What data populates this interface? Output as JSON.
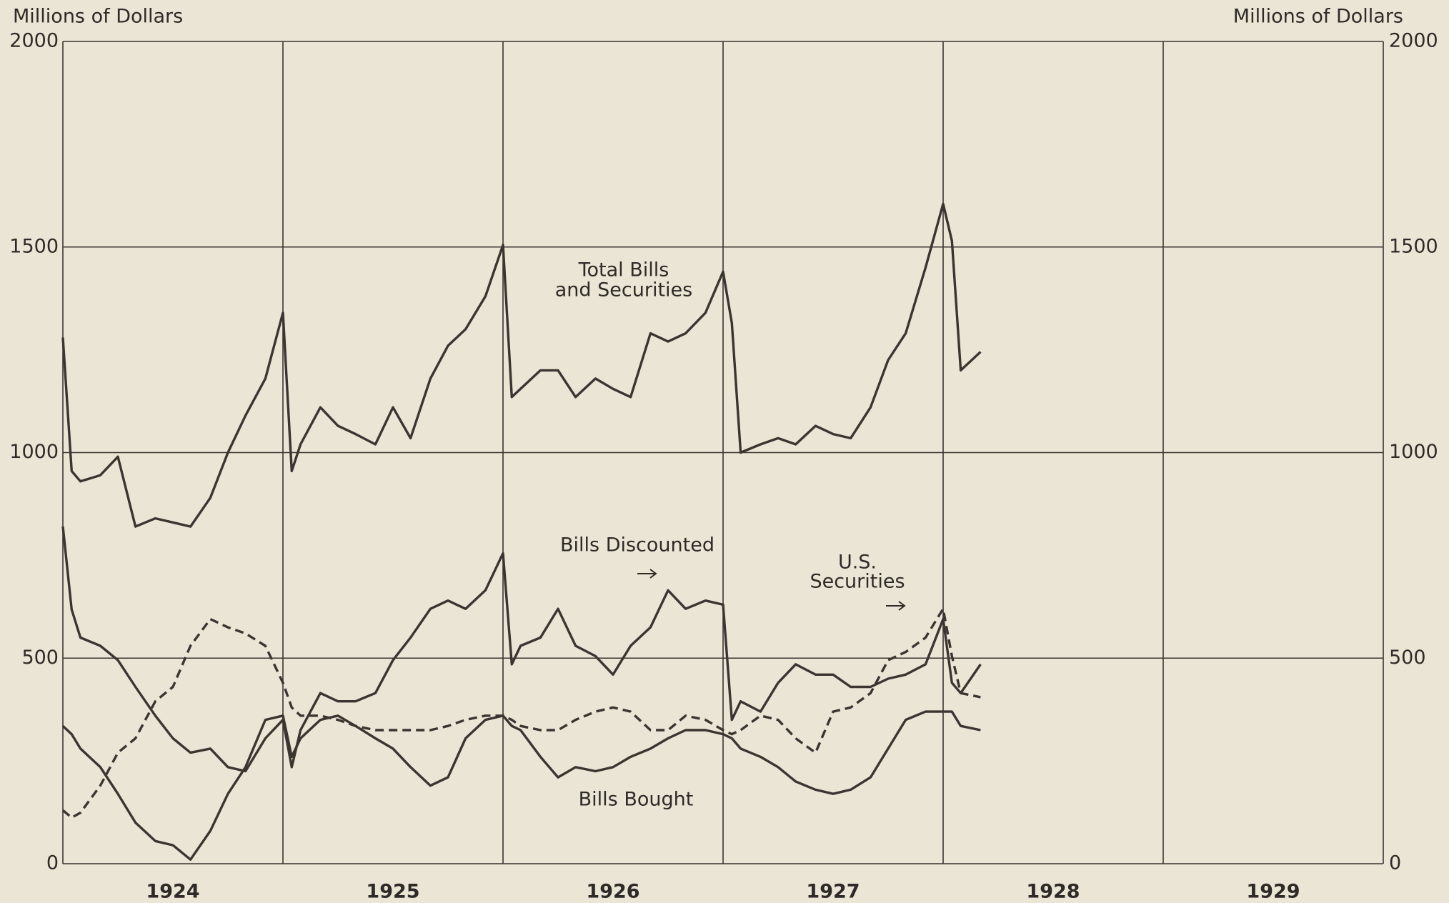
{
  "chart_data": {
    "type": "line",
    "y_axis_label": "Millions of Dollars",
    "y2_axis_label": "Millions of Dollars",
    "annotations": [
      "Total Bills",
      "and Securities",
      "Bills Discounted",
      "U.S.",
      "Securities",
      "Bills Bought"
    ],
    "xlim": [
      1924,
      1930
    ],
    "xticks": [
      {
        "value": 1924.5,
        "label": "1924"
      },
      {
        "value": 1925.5,
        "label": "1925"
      },
      {
        "value": 1926.5,
        "label": "1926"
      },
      {
        "value": 1927.5,
        "label": "1927"
      },
      {
        "value": 1928.5,
        "label": "1928"
      },
      {
        "value": 1929.5,
        "label": "1929"
      }
    ],
    "ylim": [
      0,
      2000
    ],
    "yticks": [
      0,
      500,
      1000,
      1500,
      2000
    ],
    "grid": true,
    "x": [
      1924.0,
      1924.04,
      1924.08,
      1924.17,
      1924.25,
      1924.33,
      1924.42,
      1924.5,
      1924.58,
      1924.67,
      1924.75,
      1924.83,
      1924.92,
      1925.0,
      1925.04,
      1925.08,
      1925.17,
      1925.25,
      1925.33,
      1925.42,
      1925.5,
      1925.58,
      1925.67,
      1925.75,
      1925.83,
      1925.92,
      1926.0,
      1926.04,
      1926.08,
      1926.17,
      1926.25,
      1926.33,
      1926.42,
      1926.5,
      1926.58,
      1926.67,
      1926.75,
      1926.83,
      1926.92,
      1927.0,
      1927.04,
      1927.08,
      1927.17,
      1927.25,
      1927.33,
      1927.42,
      1927.5,
      1927.58,
      1927.67,
      1927.75,
      1927.83,
      1927.92,
      1928.0,
      1928.04,
      1928.08,
      1928.17
    ],
    "series": [
      {
        "name": "Total Bills and Securities",
        "color": "#3a3531",
        "dashed": false,
        "values": [
          1280,
          955,
          930,
          945,
          990,
          820,
          840,
          830,
          820,
          890,
          1000,
          1090,
          1180,
          1340,
          955,
          1020,
          1110,
          1065,
          1045,
          1020,
          1110,
          1035,
          1180,
          1260,
          1300,
          1380,
          1505,
          1135,
          1155,
          1200,
          1200,
          1135,
          1180,
          1155,
          1135,
          1290,
          1270,
          1290,
          1340,
          1440,
          1315,
          1000,
          1020,
          1035,
          1020,
          1065,
          1045,
          1035,
          1110,
          1225,
          1290,
          1450,
          1605,
          1515,
          1200,
          1245
        ]
      },
      {
        "name": "Bills Discounted",
        "color": "#3a3531",
        "dashed": false,
        "values": [
          820,
          618,
          550,
          530,
          495,
          430,
          360,
          305,
          270,
          280,
          235,
          225,
          305,
          350,
          235,
          325,
          415,
          395,
          395,
          415,
          495,
          550,
          620,
          640,
          620,
          665,
          755,
          485,
          530,
          550,
          620,
          530,
          505,
          460,
          530,
          575,
          665,
          620,
          640,
          630,
          350,
          395,
          370,
          440,
          485,
          460,
          460,
          430,
          430,
          450,
          460,
          485,
          595,
          440,
          415,
          485
        ]
      },
      {
        "name": "U.S. Securities",
        "color": "#3a3531",
        "dashed": true,
        "values": [
          130,
          112,
          124,
          190,
          270,
          305,
          395,
          430,
          530,
          595,
          575,
          560,
          530,
          440,
          380,
          360,
          360,
          350,
          335,
          325,
          325,
          325,
          325,
          335,
          350,
          360,
          360,
          350,
          335,
          325,
          325,
          350,
          370,
          380,
          370,
          325,
          325,
          360,
          350,
          325,
          315,
          325,
          360,
          350,
          305,
          270,
          370,
          380,
          415,
          495,
          515,
          550,
          620,
          505,
          415,
          405
        ]
      },
      {
        "name": "Bills Bought",
        "color": "#3a3531",
        "dashed": false,
        "values": [
          335,
          315,
          280,
          235,
          170,
          100,
          55,
          45,
          10,
          80,
          170,
          235,
          350,
          360,
          260,
          305,
          350,
          360,
          335,
          305,
          280,
          235,
          190,
          210,
          305,
          350,
          360,
          335,
          325,
          260,
          210,
          235,
          225,
          235,
          260,
          280,
          305,
          325,
          325,
          315,
          305,
          280,
          260,
          235,
          200,
          180,
          170,
          180,
          210,
          280,
          350,
          370,
          370,
          370,
          335,
          325
        ]
      }
    ]
  }
}
